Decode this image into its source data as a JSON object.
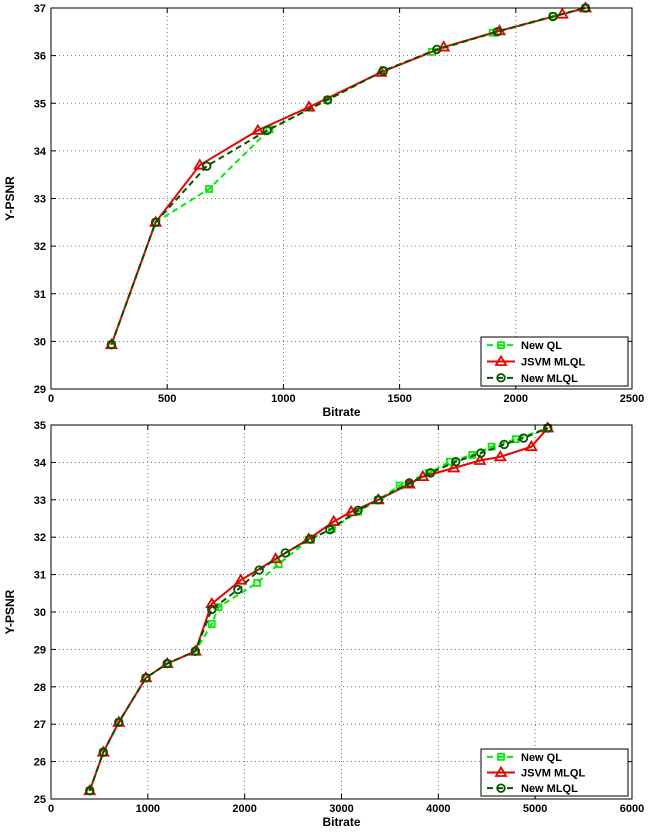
{
  "chart_data": [
    {
      "type": "line",
      "xlabel": "Bitrate",
      "ylabel": "Y-PSNR",
      "xlim": [
        0,
        2500
      ],
      "ylim": [
        29,
        37
      ],
      "xticks": [
        0,
        500,
        1000,
        1500,
        2000,
        2500
      ],
      "yticks": [
        29,
        30,
        31,
        32,
        33,
        34,
        35,
        36,
        37
      ],
      "grid": true,
      "legend_position": "bottom-right",
      "series": [
        {
          "name": "New QL",
          "color": "#00ee00",
          "dash": "dashed",
          "marker": "square",
          "x": [
            260,
            450,
            680,
            940,
            1190,
            1430,
            1640,
            1900,
            2160,
            2300
          ],
          "y": [
            29.93,
            32.5,
            33.2,
            34.45,
            35.07,
            35.68,
            36.08,
            36.48,
            36.83,
            37.0
          ]
        },
        {
          "name": "JSVM MLQL",
          "color": "#ee0000",
          "dash": "solid",
          "marker": "triangle",
          "x": [
            260,
            450,
            640,
            890,
            1110,
            1420,
            1690,
            1930,
            2200,
            2300
          ],
          "y": [
            29.93,
            32.5,
            33.7,
            34.43,
            34.92,
            35.65,
            36.18,
            36.52,
            36.87,
            37.0
          ]
        },
        {
          "name": "New MLQL",
          "color": "#005500",
          "dash": "dashed",
          "marker": "circle",
          "x": [
            260,
            450,
            670,
            930,
            1190,
            1430,
            1660,
            1920,
            2160,
            2300
          ],
          "y": [
            29.93,
            32.5,
            33.68,
            34.43,
            35.07,
            35.68,
            36.13,
            36.5,
            36.82,
            37.0
          ]
        }
      ]
    },
    {
      "type": "line",
      "xlabel": "Bitrate",
      "ylabel": "Y-PSNR",
      "xlim": [
        0,
        6000
      ],
      "ylim": [
        25,
        35
      ],
      "xticks": [
        0,
        1000,
        2000,
        3000,
        4000,
        5000,
        6000
      ],
      "yticks": [
        25,
        26,
        27,
        28,
        29,
        30,
        31,
        32,
        33,
        34,
        35
      ],
      "grid": true,
      "legend_position": "bottom-right",
      "series": [
        {
          "name": "New QL",
          "color": "#00ee00",
          "dash": "dashed",
          "marker": "square",
          "x": [
            400,
            540,
            700,
            980,
            1200,
            1490,
            1660,
            1730,
            2130,
            2350,
            2660,
            2900,
            3170,
            3380,
            3600,
            3900,
            4120,
            4350,
            4550,
            4800,
            5130
          ],
          "y": [
            25.22,
            26.25,
            27.05,
            28.24,
            28.62,
            28.95,
            29.68,
            30.13,
            30.78,
            31.28,
            31.93,
            32.22,
            32.68,
            33.0,
            33.38,
            33.72,
            34.02,
            34.2,
            34.42,
            34.62,
            34.92
          ]
        },
        {
          "name": "JSVM MLQL",
          "color": "#ee0000",
          "dash": "solid",
          "marker": "triangle",
          "x": [
            400,
            540,
            700,
            980,
            1200,
            1490,
            1660,
            1960,
            2320,
            2660,
            2920,
            3100,
            3380,
            3700,
            3840,
            4160,
            4430,
            4640,
            4960,
            5130
          ],
          "y": [
            25.22,
            26.25,
            27.05,
            28.24,
            28.62,
            28.95,
            30.22,
            30.85,
            31.42,
            31.95,
            32.42,
            32.68,
            33.0,
            33.42,
            33.62,
            33.85,
            34.05,
            34.15,
            34.42,
            34.92
          ]
        },
        {
          "name": "New MLQL",
          "color": "#005500",
          "dash": "dashed",
          "marker": "circle",
          "x": [
            400,
            540,
            700,
            980,
            1200,
            1490,
            1660,
            1930,
            2150,
            2420,
            2680,
            2880,
            3170,
            3380,
            3700,
            3920,
            4180,
            4440,
            4680,
            4880,
            5130
          ],
          "y": [
            25.22,
            26.25,
            27.05,
            28.24,
            28.62,
            28.95,
            30.07,
            30.6,
            31.12,
            31.58,
            31.95,
            32.2,
            32.72,
            33.0,
            33.45,
            33.72,
            34.02,
            34.25,
            34.48,
            34.65,
            34.92
          ]
        }
      ]
    }
  ]
}
